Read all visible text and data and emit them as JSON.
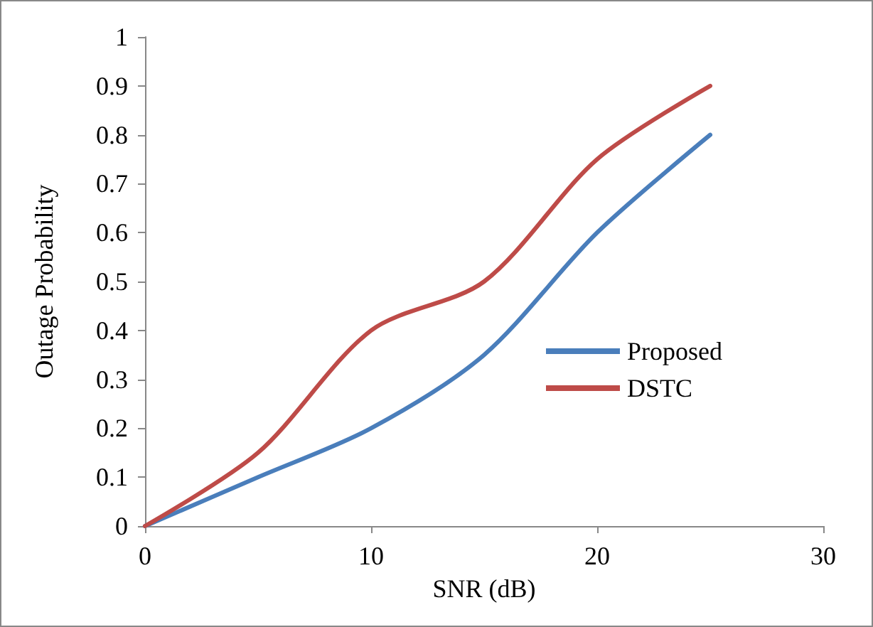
{
  "chart_data": {
    "type": "line",
    "xlabel": "SNR (dB)",
    "ylabel": "Outage Probability",
    "x": [
      0,
      5,
      10,
      15,
      20,
      25
    ],
    "series": [
      {
        "name": "Proposed",
        "color": "#4a7ebb",
        "values": [
          0,
          0.1,
          0.2,
          0.35,
          0.6,
          0.8
        ]
      },
      {
        "name": "DSTC",
        "color": "#be4b48",
        "values": [
          0,
          0.15,
          0.4,
          0.5,
          0.75,
          0.9
        ]
      }
    ],
    "xlim": [
      0,
      30
    ],
    "xticks": [
      0,
      10,
      20,
      30
    ],
    "ylim": [
      0,
      1
    ],
    "yticks": [
      0,
      0.1,
      0.2,
      0.3,
      0.4,
      0.5,
      0.6,
      0.7,
      0.8,
      0.9,
      1
    ],
    "grid": false,
    "legend": "right",
    "marker": "none",
    "line_style": "solid"
  }
}
